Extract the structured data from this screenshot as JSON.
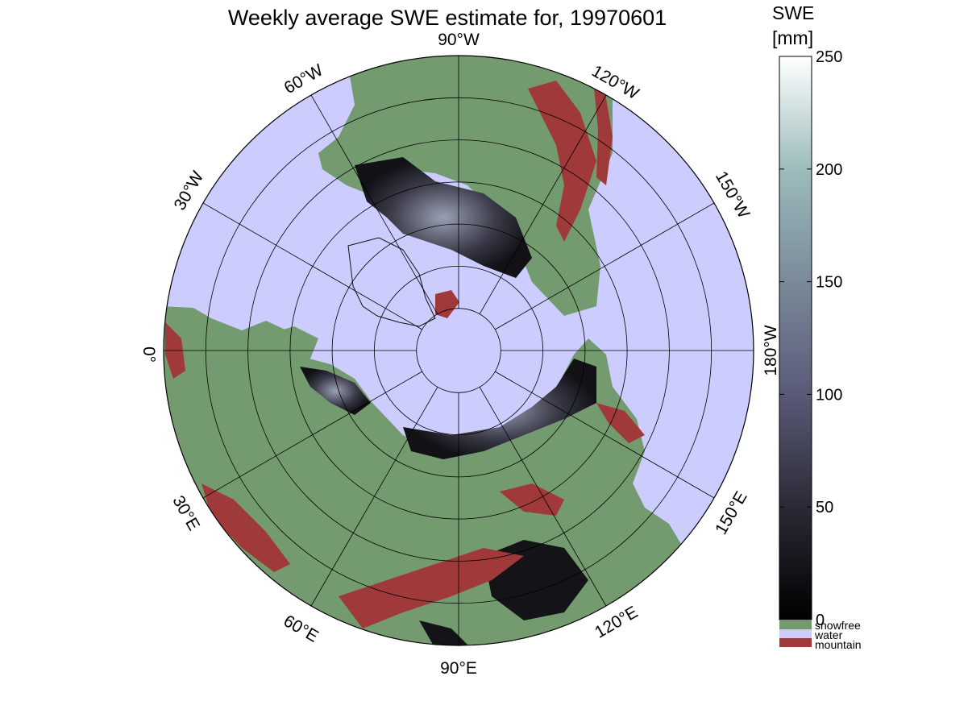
{
  "title": "Weekly average SWE estimate for, 19970601",
  "colorbar": {
    "unit_line1": "SWE",
    "unit_line2": "[mm]",
    "ticks": [
      0,
      50,
      100,
      150,
      200,
      250
    ],
    "range": [
      0,
      250
    ],
    "gradient_stops": [
      "#000000",
      "#2a2a36",
      "#5a5a78",
      "#7a8a9a",
      "#9cbcbc",
      "#ffffff"
    ],
    "categories": [
      {
        "label": "snowfree",
        "color": "#749a70"
      },
      {
        "label": "water",
        "color": "#ccccff"
      },
      {
        "label": "mountain",
        "color": "#a0393a"
      }
    ]
  },
  "map": {
    "projection": "north-polar-stereographic",
    "ocean_color": "#ccccff",
    "land_color": "#749a70",
    "mountain_color": "#a0393a",
    "rotation_deg_of_90W_from_top": 0,
    "longitude_labels": [
      {
        "text": "90°W",
        "lon": -90
      },
      {
        "text": "120°W",
        "lon": -120
      },
      {
        "text": "150°W",
        "lon": -150
      },
      {
        "text": "180°W",
        "lon": 180
      },
      {
        "text": "150°E",
        "lon": 150
      },
      {
        "text": "120°E",
        "lon": 120
      },
      {
        "text": "90°E",
        "lon": 90
      },
      {
        "text": "60°E",
        "lon": 60
      },
      {
        "text": "30°E",
        "lon": 30
      },
      {
        "text": "0°",
        "lon": 0
      },
      {
        "text": "30°W",
        "lon": -30
      },
      {
        "text": "60°W",
        "lon": -60
      }
    ],
    "latitude_circles": [
      80,
      70,
      60,
      50,
      40,
      30,
      20
    ]
  }
}
